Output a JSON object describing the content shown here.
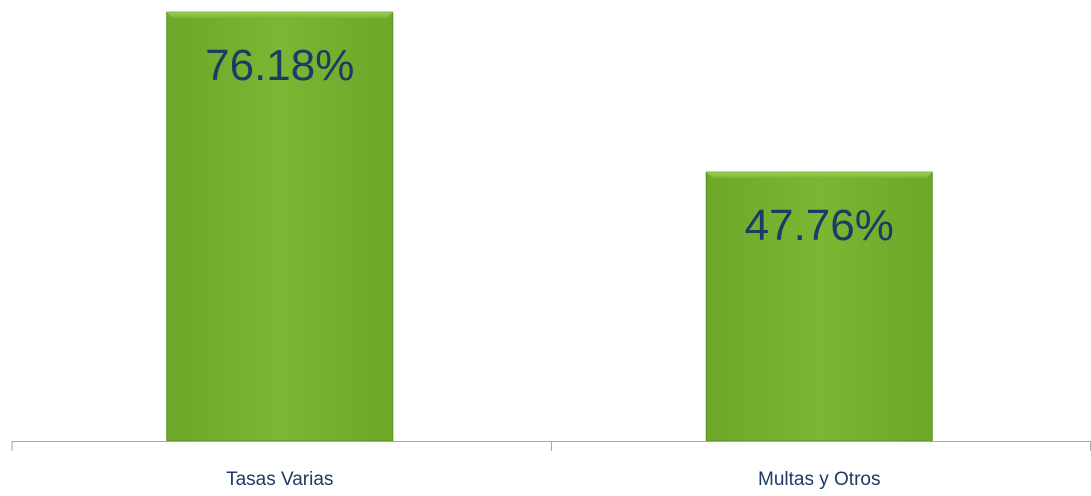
{
  "chart_data": {
    "type": "bar",
    "categories": [
      "Tasas Varias",
      "Multas y Otros"
    ],
    "values": [
      76.18,
      47.76
    ],
    "data_labels": [
      "76.18%",
      "47.76%"
    ],
    "title": "",
    "xlabel": "",
    "ylabel": "",
    "ylim": [
      0,
      80
    ],
    "grid": false,
    "legend": "none",
    "bar_color": "#79b22f",
    "bar_edge_color": "#5c8f1e",
    "label_color": "#1f3a64",
    "axis_color": "#a6a6a6"
  }
}
